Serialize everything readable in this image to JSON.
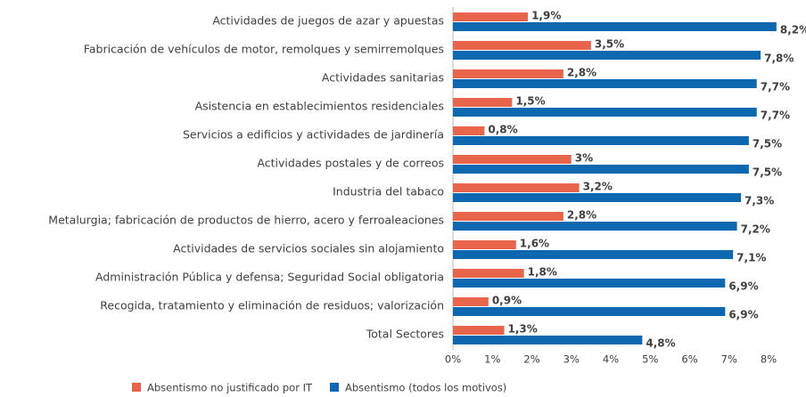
{
  "chart_data": {
    "type": "hbar",
    "categories": [
      "Actividades de juegos de azar y apuestas",
      "Fabricación de vehículos de motor, remolques y semirremolques",
      "Actividades sanitarias",
      "Asistencia en establecimientos residenciales",
      "Servicios a edificios y actividades de jardinería",
      "Actividades postales y de correos",
      "Industria del tabaco",
      "Metalurgia; fabricación de productos de hierro, acero y ferroaleaciones",
      "Actividades de servicios sociales sin alojamiento",
      "Administración Pública y defensa; Seguridad Social obligatoria",
      "Recogida, tratamiento y eliminación de residuos; valorización",
      "Total Sectores"
    ],
    "series": [
      {
        "name": "Absentismo no justificado por IT",
        "color": "#e8654b",
        "values": [
          1.9,
          3.5,
          2.8,
          1.5,
          0.8,
          3,
          3.2,
          2.8,
          1.6,
          1.8,
          0.9,
          1.3
        ],
        "value_labels": [
          "1,9%",
          "3,5%",
          "2,8%",
          "1,5%",
          "0,8%",
          "3%",
          "3,2%",
          "2,8%",
          "1,6%",
          "1,8%",
          "0,9%",
          "1,3%"
        ]
      },
      {
        "name": "Absentismo (todos los motivos)",
        "color": "#0b68b1",
        "values": [
          8.2,
          7.8,
          7.7,
          7.7,
          7.5,
          7.5,
          7.3,
          7.2,
          7.1,
          6.9,
          6.9,
          4.8
        ],
        "value_labels": [
          "8,2%",
          "7,8%",
          "7,7%",
          "7,7%",
          "7,5%",
          "7,5%",
          "7,3%",
          "7,2%",
          "7,1%",
          "6,9%",
          "6,9%",
          "4,8%"
        ]
      }
    ],
    "xlim": [
      0,
      8.5
    ],
    "xticks": [
      {
        "value": 0,
        "label": "0%"
      },
      {
        "value": 1,
        "label": "1%"
      },
      {
        "value": 2,
        "label": "2%"
      },
      {
        "value": 3,
        "label": "3%"
      },
      {
        "value": 4,
        "label": "4%"
      },
      {
        "value": 5,
        "label": "5%"
      },
      {
        "value": 6,
        "label": "6%"
      },
      {
        "value": 7,
        "label": "7%"
      },
      {
        "value": 8,
        "label": "8%"
      }
    ],
    "legend": "bottom-left"
  }
}
